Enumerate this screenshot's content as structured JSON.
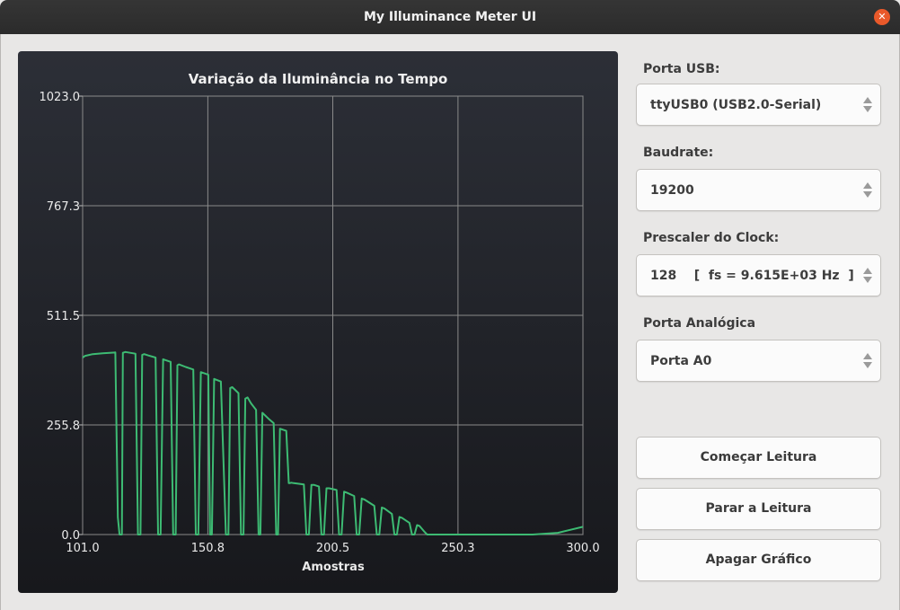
{
  "window": {
    "title": "My Illuminance Meter UI",
    "close_symbol": "✕"
  },
  "controls": {
    "usb_port": {
      "label": "Porta USB:",
      "value": "ttyUSB0 (USB2.0-Serial)"
    },
    "baudrate": {
      "label": "Baudrate:",
      "value": "19200"
    },
    "prescaler": {
      "label": "Prescaler do Clock:",
      "value": "128    [  fs = 9.615E+03 Hz  ]"
    },
    "analog_port": {
      "label": "Porta Analógica",
      "value": "Porta A0"
    }
  },
  "buttons": {
    "start": "Começar Leitura",
    "stop": "Parar a Leitura",
    "clear": "Apagar Gráfico"
  },
  "chart_data": {
    "type": "line",
    "title": "Variação da Iluminância no Tempo",
    "xlabel": "Amostras",
    "ylabel": "",
    "xlim": [
      101.0,
      300.0
    ],
    "ylim": [
      0.0,
      1023.0
    ],
    "x_ticks": [
      "101.0",
      "150.8",
      "200.5",
      "250.3",
      "300.0"
    ],
    "y_ticks": [
      "0.0",
      "255.8",
      "511.5",
      "767.3",
      "1023.0"
    ],
    "grid": true,
    "line_color": "#3dbb73",
    "series": [
      {
        "x": [
          101,
          102,
          105,
          109,
          114,
          115,
          115.7,
          116.6,
          117,
          118,
          122,
          123,
          124,
          124.7,
          125.5,
          127,
          130,
          131,
          132,
          133,
          136,
          137,
          138,
          138.7,
          139.3,
          142,
          145,
          146,
          147,
          148,
          151,
          151.7,
          152.4,
          153.3,
          156,
          158,
          159,
          159.7,
          160.5,
          163,
          164,
          165,
          165.7,
          166.6,
          168,
          170,
          171,
          171.7,
          172.5,
          175,
          177,
          178,
          178.7,
          179.5,
          182,
          183,
          183.3,
          184,
          185,
          189,
          190,
          191,
          192,
          193,
          195,
          196,
          197,
          198,
          199,
          202,
          203,
          204,
          205,
          206,
          209,
          210,
          211,
          212,
          213,
          217,
          218,
          219,
          220,
          221,
          224,
          225,
          226,
          227,
          228,
          231,
          232,
          233,
          234,
          235,
          237,
          238,
          239,
          243,
          250,
          260,
          270,
          280,
          290,
          300
        ],
        "y": [
          413,
          417,
          421,
          423,
          425,
          40,
          0,
          0,
          424,
          426,
          422,
          0,
          0,
          419,
          421,
          418,
          413,
          0,
          0,
          409,
          403,
          0,
          0,
          395,
          397,
          391,
          385,
          0,
          0,
          379,
          373,
          0,
          0,
          363,
          357,
          0,
          0,
          342,
          344,
          330,
          0,
          0,
          317,
          320,
          306,
          291,
          0,
          0,
          284,
          270,
          260,
          0,
          0,
          247,
          242,
          120,
          120,
          121,
          120,
          117,
          0,
          0,
          116,
          116,
          112,
          0,
          0,
          108,
          108,
          104,
          0,
          0,
          100,
          98,
          90,
          0,
          0,
          84,
          82,
          67,
          0,
          0,
          63,
          61,
          48,
          0,
          0,
          41,
          39,
          27,
          0,
          0,
          22,
          20,
          6,
          0,
          0,
          0,
          0,
          0,
          0,
          0,
          4,
          18
        ]
      }
    ]
  }
}
